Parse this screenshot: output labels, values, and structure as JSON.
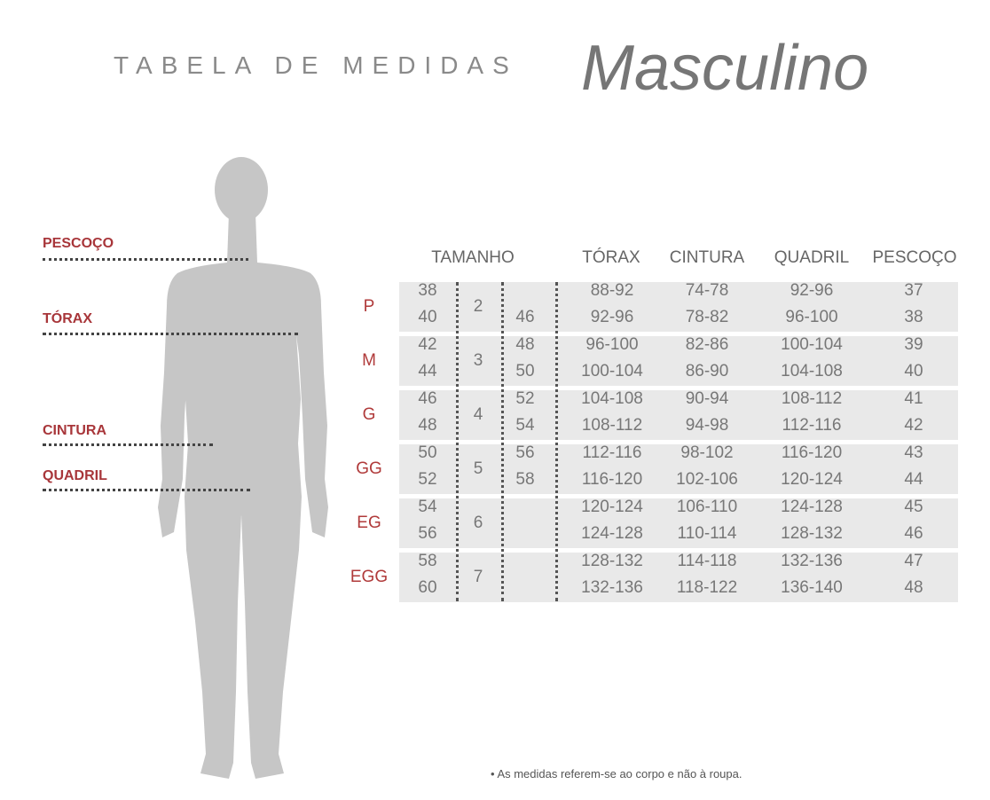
{
  "title": {
    "prefix": "TABELA DE MEDIDAS",
    "main": "Masculino"
  },
  "colors": {
    "accent": "#b03a3a",
    "band": "#e9e9e9",
    "silhouette": "#c6c6c6"
  },
  "body_labels": [
    "PESCOÇO",
    "TÓRAX",
    "CINTURA",
    "QUADRIL"
  ],
  "table": {
    "headers": {
      "size": "TAMANHO",
      "torax": "TÓRAX",
      "cintura": "CINTURA",
      "quadril": "QUADRIL",
      "pescoco": "PESCOÇO"
    },
    "groups": [
      {
        "size": "P",
        "kids": "2",
        "rows": [
          {
            "num": "38",
            "alt": "",
            "torax": "88-92",
            "cintura": "74-78",
            "quadril": "92-96",
            "pescoco": "37"
          },
          {
            "num": "40",
            "alt": "46",
            "torax": "92-96",
            "cintura": "78-82",
            "quadril": "96-100",
            "pescoco": "38"
          }
        ]
      },
      {
        "size": "M",
        "kids": "3",
        "rows": [
          {
            "num": "42",
            "alt": "48",
            "torax": "96-100",
            "cintura": "82-86",
            "quadril": "100-104",
            "pescoco": "39"
          },
          {
            "num": "44",
            "alt": "50",
            "torax": "100-104",
            "cintura": "86-90",
            "quadril": "104-108",
            "pescoco": "40"
          }
        ]
      },
      {
        "size": "G",
        "kids": "4",
        "rows": [
          {
            "num": "46",
            "alt": "52",
            "torax": "104-108",
            "cintura": "90-94",
            "quadril": "108-112",
            "pescoco": "41"
          },
          {
            "num": "48",
            "alt": "54",
            "torax": "108-112",
            "cintura": "94-98",
            "quadril": "112-116",
            "pescoco": "42"
          }
        ]
      },
      {
        "size": "GG",
        "kids": "5",
        "rows": [
          {
            "num": "50",
            "alt": "56",
            "torax": "112-116",
            "cintura": "98-102",
            "quadril": "116-120",
            "pescoco": "43"
          },
          {
            "num": "52",
            "alt": "58",
            "torax": "116-120",
            "cintura": "102-106",
            "quadril": "120-124",
            "pescoco": "44"
          }
        ]
      },
      {
        "size": "EG",
        "kids": "6",
        "rows": [
          {
            "num": "54",
            "alt": "",
            "torax": "120-124",
            "cintura": "106-110",
            "quadril": "124-128",
            "pescoco": "45"
          },
          {
            "num": "56",
            "alt": "",
            "torax": "124-128",
            "cintura": "110-114",
            "quadril": "128-132",
            "pescoco": "46"
          }
        ]
      },
      {
        "size": "EGG",
        "kids": "7",
        "rows": [
          {
            "num": "58",
            "alt": "",
            "torax": "128-132",
            "cintura": "114-118",
            "quadril": "132-136",
            "pescoco": "47"
          },
          {
            "num": "60",
            "alt": "",
            "torax": "132-136",
            "cintura": "118-122",
            "quadril": "136-140",
            "pescoco": "48"
          }
        ]
      }
    ]
  },
  "footer": "• As medidas referem-se ao corpo e não à roupa."
}
